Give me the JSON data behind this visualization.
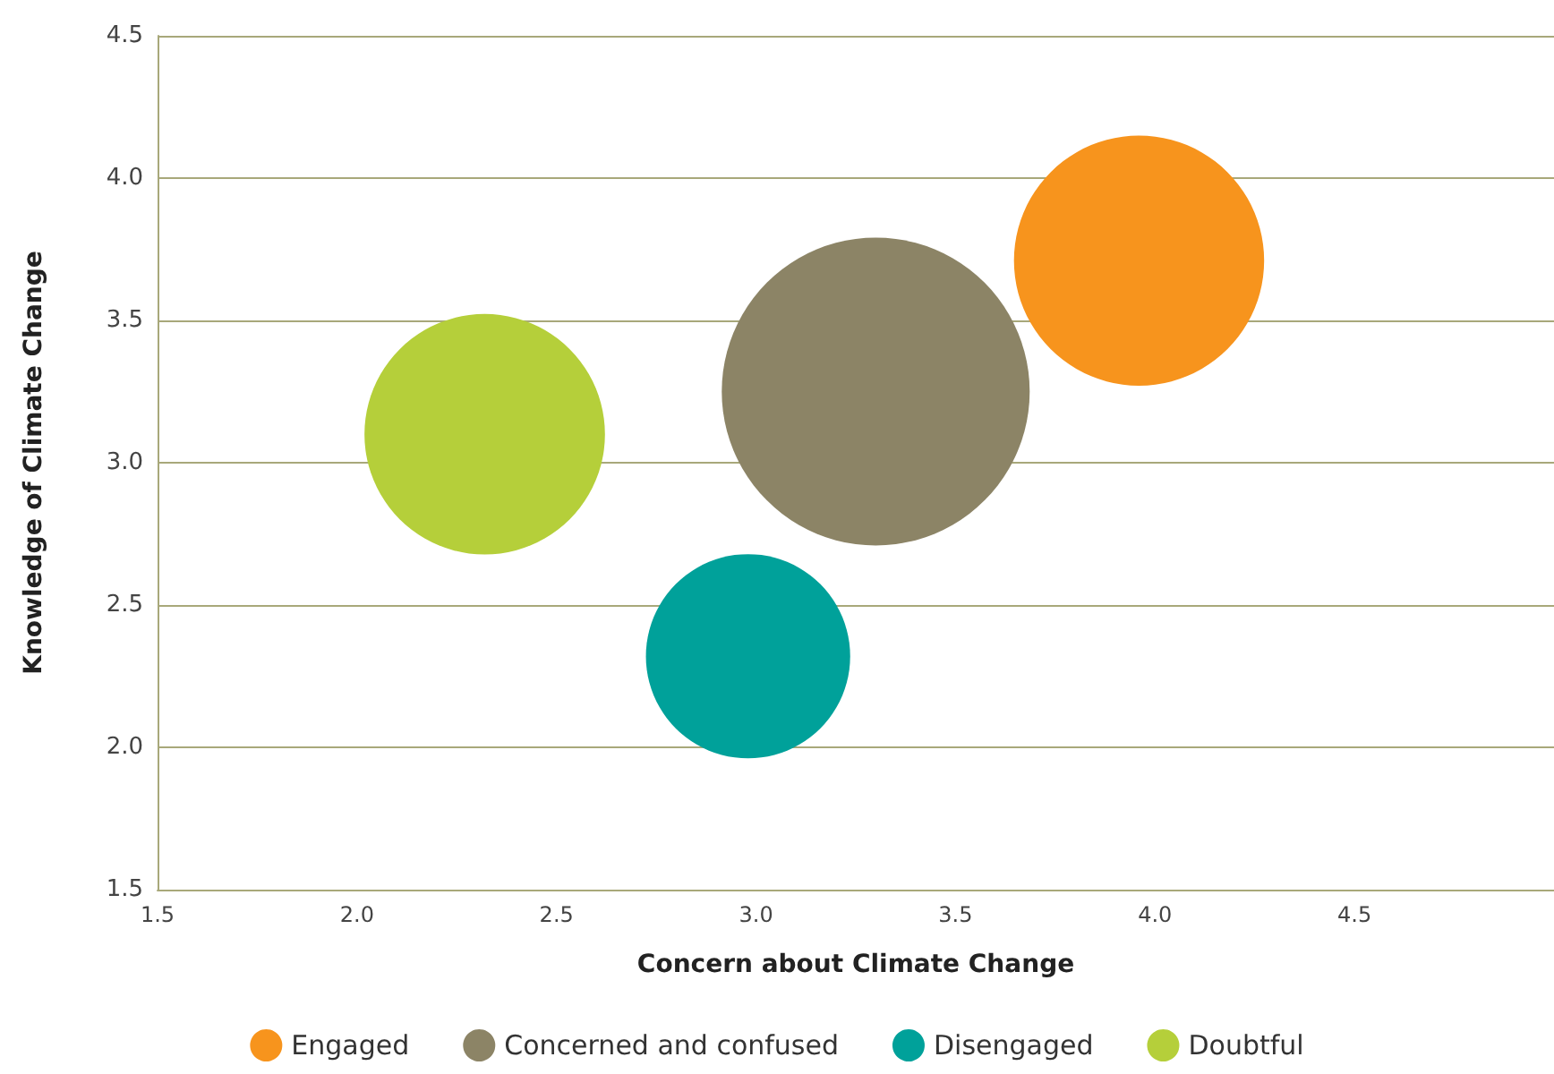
{
  "chart_data": {
    "type": "bubble",
    "xlabel": "Concern about Climate Change",
    "ylabel": "Knowledge of Climate Change",
    "xlim": [
      1.5,
      5.0
    ],
    "xticks": [
      1.5,
      {
        "value": 2,
        "label": "2.0"
      },
      2.5,
      {
        "value": 3,
        "label": "3.0"
      },
      3.5,
      {
        "value": 4,
        "label": "4.0"
      },
      4.5
    ],
    "ylim": [
      1.5,
      4.5
    ],
    "yticks": [
      1.5,
      {
        "value": 2,
        "label": "2.0"
      },
      2.5,
      {
        "value": 3,
        "label": "3.0"
      },
      3.5,
      {
        "value": 4,
        "label": "4.0"
      },
      4.5
    ],
    "grid": "y",
    "legend": "bottom",
    "marker": "circle",
    "series": [
      {
        "name": "Engaged",
        "color": "#f7941d",
        "x": [
          3.96
        ],
        "values": [
          3.71
        ],
        "sizes": [
          0.66
        ]
      },
      {
        "name": "Concerned and confused",
        "color": "#8c8466",
        "x": [
          3.3
        ],
        "values": [
          3.25
        ],
        "sizes": [
          1
        ]
      },
      {
        "name": "Disengaged",
        "color": "#00a19a",
        "x": [
          2.98
        ],
        "values": [
          2.32
        ],
        "sizes": [
          0.44
        ]
      },
      {
        "name": "Doubtful",
        "color": "#b5cf3a",
        "x": [
          2.32
        ],
        "values": [
          3.1
        ],
        "sizes": [
          0.61
        ]
      }
    ]
  }
}
